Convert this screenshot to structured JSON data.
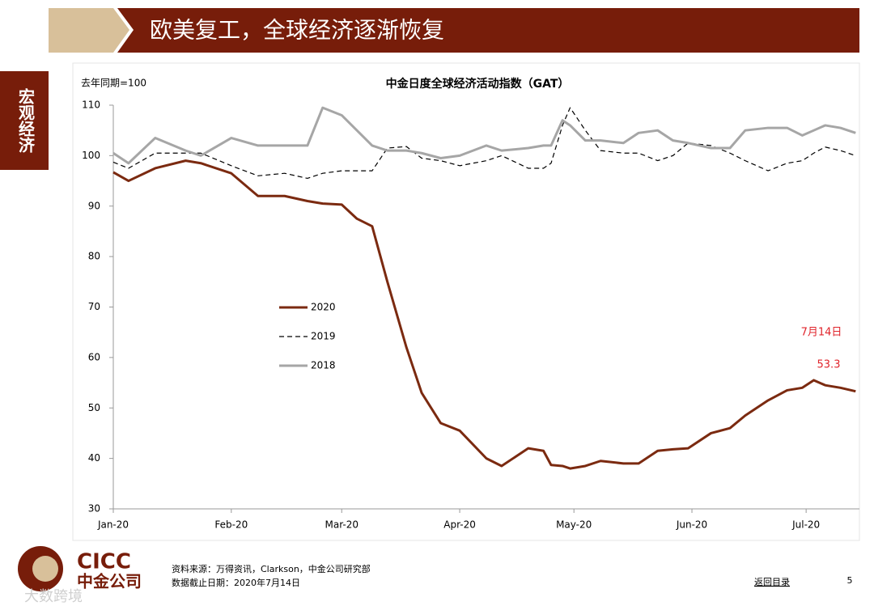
{
  "header": {
    "title": "欧美复工，全球经济逐渐恢复",
    "section": "宏观经济"
  },
  "footer": {
    "logo_en": "CICC",
    "logo_cn": "中金公司",
    "source": "资料来源：万得资讯，Clarkson，中金公司研究部",
    "cutoff": "数据截止日期：2020年7月14日",
    "back": "返回目录",
    "page": "5",
    "watermark": "大数跨境"
  },
  "chart_data": {
    "type": "line",
    "title": "中金日度全球经济活动指数（GAT）",
    "y_label": "去年同期=100",
    "annotation": "7月14日",
    "x": [
      0,
      4,
      11,
      19,
      23,
      31,
      38,
      45,
      51,
      55,
      60,
      64,
      68,
      72,
      77,
      81,
      86,
      91,
      98,
      102,
      109,
      113,
      115,
      118,
      120,
      124,
      128,
      134,
      138,
      143,
      147,
      151,
      157,
      162,
      166,
      172,
      177,
      181,
      184,
      187,
      191,
      195
    ],
    "series": [
      {
        "name": "2020",
        "color": "#7b2a10",
        "values": [
          96.7,
          95,
          97.5,
          99,
          98.5,
          96.5,
          92,
          92,
          91,
          90.5,
          90.3,
          87.5,
          86,
          75,
          62,
          53,
          47,
          45.5,
          40,
          38.5,
          42,
          41.5,
          38.7,
          38.5,
          38,
          38.5,
          39.5,
          39,
          39,
          41.5,
          41.8,
          42,
          45,
          46,
          48.5,
          51.5,
          53.5,
          54,
          55.5,
          54.5,
          54,
          53.3
        ]
      },
      {
        "name": "2019",
        "color": "#000000",
        "dashed": true,
        "values": [
          98.7,
          97.5,
          100.5,
          100.5,
          100.5,
          98,
          96,
          96.5,
          95.5,
          96.5,
          97,
          97,
          97,
          101.5,
          101.8,
          99.5,
          99,
          98,
          99,
          100,
          97.5,
          97.5,
          98.5,
          106,
          109.5,
          105,
          101,
          100.5,
          100.5,
          99,
          100,
          102.5,
          102,
          100.5,
          99,
          97,
          98.5,
          99,
          100.5,
          101.7,
          101,
          100
        ]
      },
      {
        "name": "2018",
        "color": "#a6a6a6",
        "values": [
          100.5,
          98.5,
          103.5,
          101,
          100,
          103.5,
          102,
          102,
          102,
          109.5,
          108,
          105,
          102,
          101,
          101,
          100.5,
          99.5,
          100,
          102,
          101,
          101.5,
          102,
          102,
          107,
          106,
          103,
          103,
          102.5,
          104.5,
          105,
          103,
          102.5,
          101.5,
          101.5,
          105,
          105.5,
          105.5,
          104,
          105,
          106,
          105.5,
          104.5
        ]
      }
    ],
    "xlim": [
      0,
      196
    ],
    "xticks": [
      {
        "value": 0,
        "label": "Jan-20"
      },
      {
        "value": 31,
        "label": "Feb-20"
      },
      {
        "value": 60,
        "label": "Mar-20"
      },
      {
        "value": 91,
        "label": "Apr-20"
      },
      {
        "value": 121,
        "label": "May-20"
      },
      {
        "value": 152,
        "label": "Jun-20"
      },
      {
        "value": 182,
        "label": "Jul-20"
      }
    ],
    "ylim": [
      30,
      110
    ],
    "yticks": [
      30,
      40,
      50,
      60,
      70,
      80,
      90,
      100,
      110
    ],
    "annotation_color": "#e0242b"
  }
}
